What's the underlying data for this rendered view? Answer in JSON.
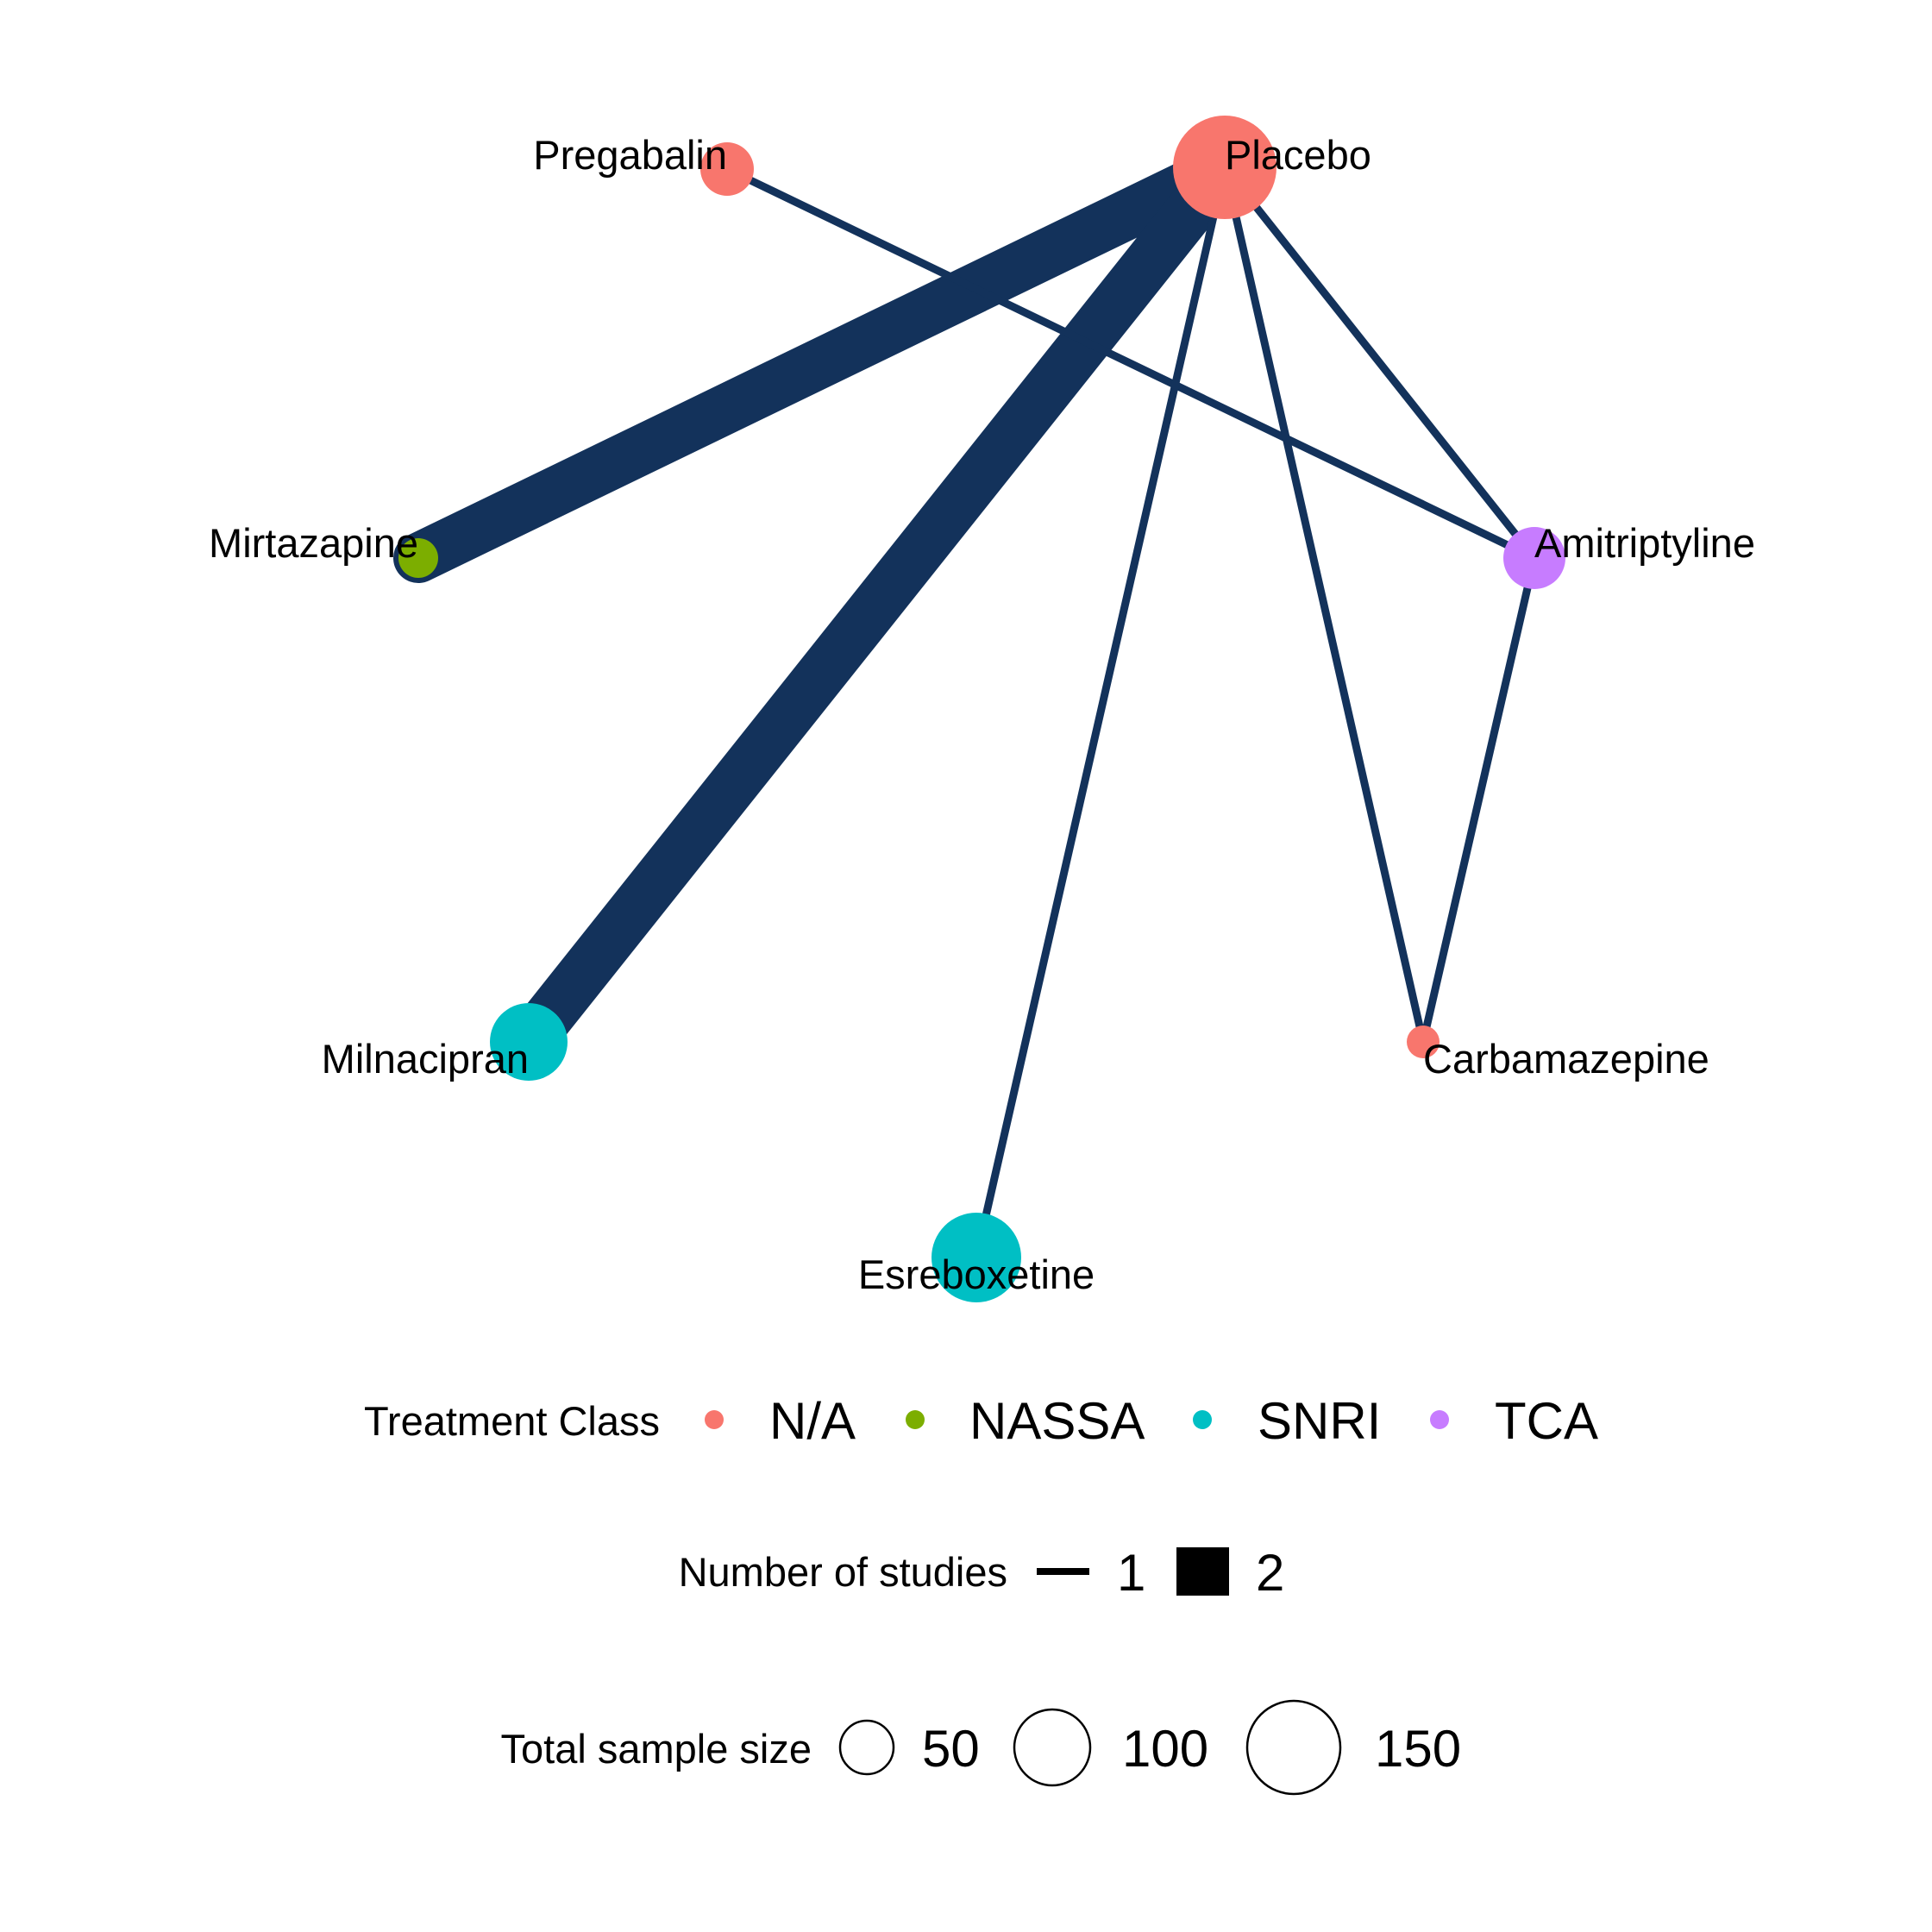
{
  "colors": {
    "edge": "#13325B",
    "class_na": "#F8766D",
    "class_nassa": "#7CAE00",
    "class_snri": "#00BFC4",
    "class_tca": "#C77CFF"
  },
  "nodes": {
    "placebo": {
      "label": "Placebo",
      "class": "N/A"
    },
    "pregabalin": {
      "label": "Pregabalin",
      "class": "N/A"
    },
    "mirtazapine": {
      "label": "Mirtazapine",
      "class": "NASSA"
    },
    "milnacipran": {
      "label": "Milnacipran",
      "class": "SNRI"
    },
    "esreboxetine": {
      "label": "Esreboxetine",
      "class": "SNRI"
    },
    "carbamazepine": {
      "label": "Carbamazepine",
      "class": "N/A"
    },
    "amitriptyline": {
      "label": "Amitriptyline",
      "class": "TCA"
    }
  },
  "edges": [
    {
      "from": "Placebo",
      "to": "Mirtazapine",
      "studies": 2
    },
    {
      "from": "Placebo",
      "to": "Milnacipran",
      "studies": 2
    },
    {
      "from": "Placebo",
      "to": "Esreboxetine",
      "studies": 1
    },
    {
      "from": "Placebo",
      "to": "Carbamazepine",
      "studies": 1
    },
    {
      "from": "Placebo",
      "to": "Amitriptyline",
      "studies": 1
    },
    {
      "from": "Pregabalin",
      "to": "Amitriptyline",
      "studies": 1
    },
    {
      "from": "Amitriptyline",
      "to": "Carbamazepine",
      "studies": 1
    }
  ],
  "legend": {
    "treatment_class": {
      "title": "Treatment Class",
      "items": [
        "N/A",
        "NASSA",
        "SNRI",
        "TCA"
      ]
    },
    "studies": {
      "title": "Number of studies",
      "items": [
        "1",
        "2"
      ]
    },
    "sample_size": {
      "title": "Total sample size",
      "items": [
        "50",
        "100",
        "150"
      ]
    }
  }
}
